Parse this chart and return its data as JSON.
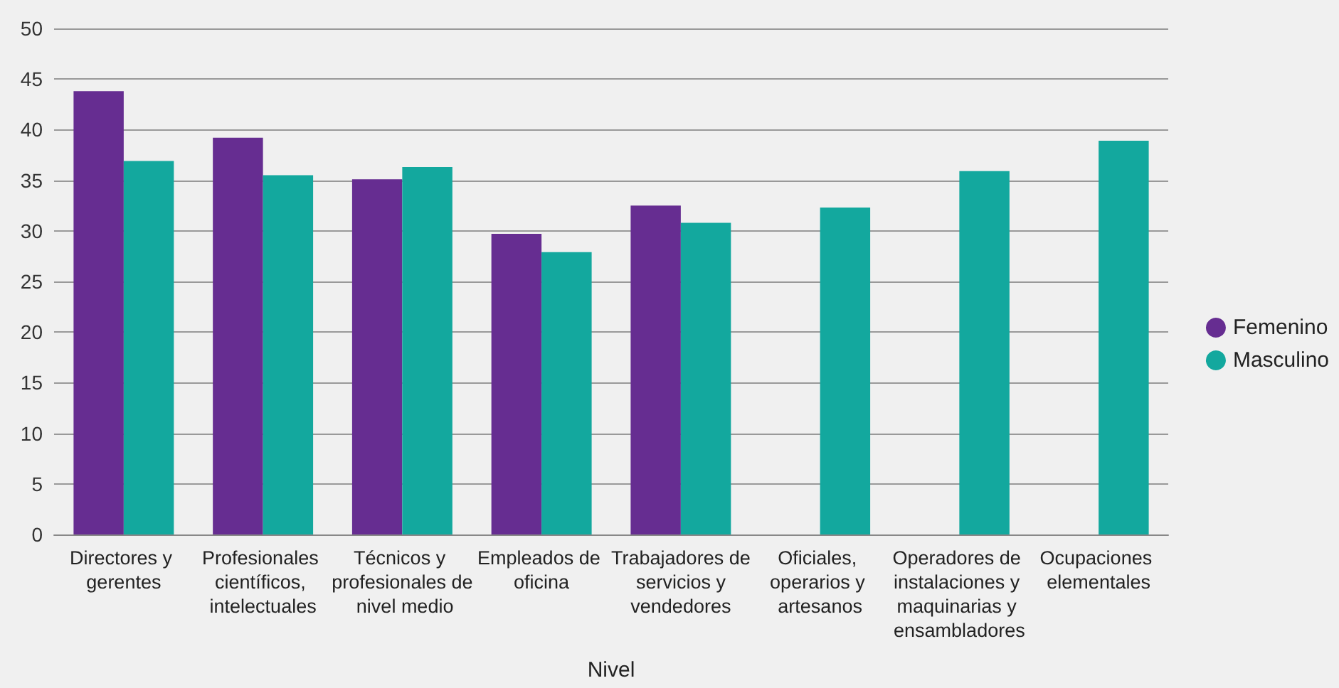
{
  "chart_data": {
    "type": "bar",
    "xlabel": "Nivel",
    "categories": [
      "Directores y gerentes",
      "Profesionales científicos, intelectuales",
      "Técnicos y profesionales de nivel medio",
      "Empleados de oficina",
      "Trabajadores de servicios y vendedores",
      "Oficiales, operarios y artesanos",
      "Operadores de instalaciones y maquinarias y ensambladores",
      "Ocupaciones elementales"
    ],
    "series": [
      {
        "name": "Femenino",
        "color": "#662d91",
        "values": [
          43.8,
          39.2,
          35.1,
          29.7,
          32.5,
          null,
          null,
          null
        ]
      },
      {
        "name": "Masculino",
        "color": "#13a89e",
        "values": [
          36.9,
          35.5,
          36.3,
          27.9,
          30.8,
          32.3,
          35.9,
          38.9
        ]
      }
    ],
    "ylim": [
      0,
      50
    ],
    "yticks": [
      0,
      5,
      10,
      15,
      20,
      25,
      30,
      35,
      40,
      45,
      50
    ],
    "grid": "y",
    "legend": "right"
  }
}
